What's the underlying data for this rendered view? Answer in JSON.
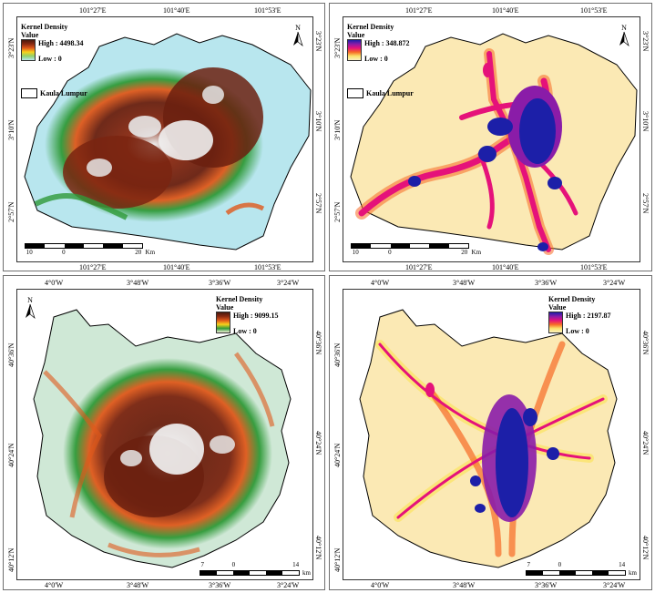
{
  "panels": [
    {
      "id": "kl-residential",
      "legend": {
        "title": "Kernel Density",
        "sub": "Value",
        "high": "High : 4498.34",
        "low": "Low : 0",
        "ramp": [
          "#4a1a0e",
          "#8b2a12",
          "#e0591b",
          "#f6d11c",
          "#8fd16e",
          "#b8e6ee"
        ]
      },
      "boundary_label": "Kaula Lumpur",
      "x_ticks_top": [
        "101°27'E",
        "101°40'E",
        "101°53'E"
      ],
      "x_ticks_bottom": [
        "101°27'E",
        "101°40'E",
        "101°53'E"
      ],
      "y_ticks_left": [
        "3°23'N",
        "3°10'N",
        "2°57'N"
      ],
      "y_ticks_right": [
        "3°23'N",
        "3°10'N",
        "2°57'N"
      ],
      "north": "N",
      "scale": {
        "labels": [
          "10",
          "0",
          "20"
        ],
        "unit": "Km"
      }
    },
    {
      "id": "kl-roads",
      "legend": {
        "title": "Kernel Density",
        "sub": "Value",
        "high": "High : 348.872",
        "low": "Low : 0",
        "ramp": [
          "#1c1fa8",
          "#8a1ca8",
          "#e5127a",
          "#f76a25",
          "#fbe36a",
          "#fbf0c0"
        ]
      },
      "boundary_label": "Kaula Lumpur",
      "x_ticks_top": [
        "101°27'E",
        "101°40'E",
        "101°53'E"
      ],
      "x_ticks_bottom": [
        "101°27'E",
        "101°40'E",
        "101°53'E"
      ],
      "y_ticks_left": [
        "3°23'N",
        "3°10'N",
        "2°57'N"
      ],
      "y_ticks_right": [
        "3°23'N",
        "3°10'N",
        "2°57'N"
      ],
      "north": "N",
      "scale": {
        "labels": [
          "10",
          "0",
          "20"
        ],
        "unit": "Km"
      }
    },
    {
      "id": "mad-residential",
      "legend": {
        "title": "Kernel Density",
        "sub": "Value",
        "high": "High : 9099.15",
        "low": "Low : 0",
        "ramp": [
          "#4a1a0e",
          "#8b2a12",
          "#e0591b",
          "#f6d11c",
          "#2f9a38",
          "#f2efd6"
        ]
      },
      "boundary_label": "",
      "x_ticks_top": [
        "4°0'W",
        "3°48'W",
        "3°36'W",
        "3°24'W"
      ],
      "x_ticks_bottom": [
        "4°0'W",
        "3°48'W",
        "3°36'W",
        "3°24'W"
      ],
      "y_ticks_left": [
        "40°36'N",
        "40°24'N",
        "40°12'N"
      ],
      "y_ticks_right": [
        "40°36'N",
        "40°24'N",
        "40°12'N"
      ],
      "north": "N",
      "scale": {
        "labels": [
          "7",
          "0",
          "14"
        ],
        "unit": "km"
      }
    },
    {
      "id": "mad-roads",
      "legend": {
        "title": "Kernel Density",
        "sub": "Value",
        "high": "High : 2197.87",
        "low": "Low : 0",
        "ramp": [
          "#1c1fa8",
          "#8a1ca8",
          "#e5127a",
          "#f76a25",
          "#fbe36a",
          "#fbf0c0"
        ]
      },
      "boundary_label": "",
      "x_ticks_top": [
        "4°0'W",
        "3°48'W",
        "3°36'W",
        "3°24'W"
      ],
      "x_ticks_bottom": [
        "4°0'W",
        "3°48'W",
        "3°36'W",
        "3°24'W"
      ],
      "y_ticks_left": [
        "40°36'N",
        "40°24'N",
        "40°12'N"
      ],
      "y_ticks_right": [
        "40°36'N",
        "40°24'N",
        "40°12'N"
      ],
      "north": "N",
      "scale": {
        "labels": [
          "7",
          "0",
          "14"
        ],
        "unit": "km"
      }
    }
  ]
}
